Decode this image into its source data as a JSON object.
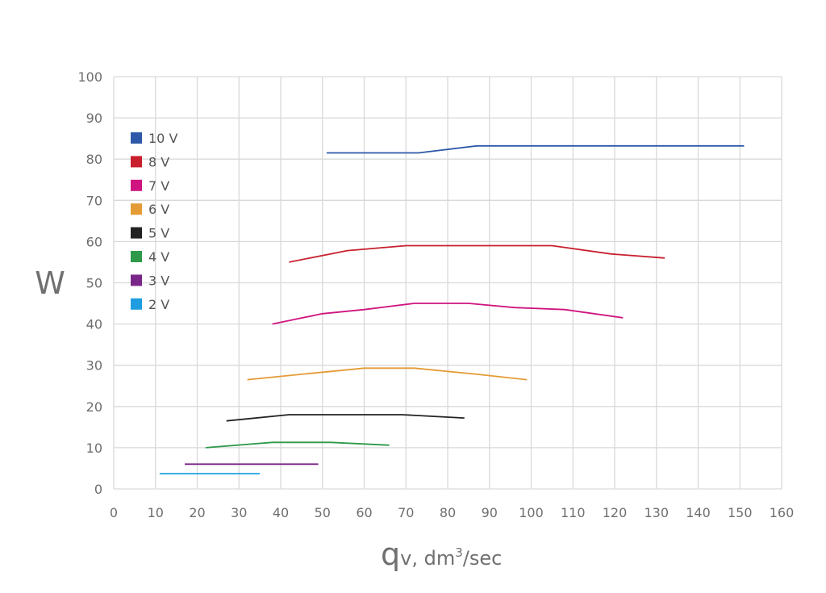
{
  "chart_data": {
    "type": "line",
    "title": "",
    "ylabel": "W",
    "xlabel": {
      "main": "q",
      "sub": "v, dm",
      "sup": "3",
      "tail": "/sec"
    },
    "xlim": [
      0,
      160
    ],
    "ylim": [
      0,
      100
    ],
    "xticks": [
      0,
      10,
      20,
      30,
      40,
      50,
      60,
      70,
      80,
      90,
      100,
      110,
      120,
      130,
      140,
      150,
      160
    ],
    "yticks": [
      0,
      10,
      20,
      30,
      40,
      50,
      60,
      70,
      80,
      90,
      100
    ],
    "grid": true,
    "legend_position": "top-left",
    "series": [
      {
        "name": "10 V",
        "color": "#2e59a8",
        "points": [
          [
            51,
            81.5
          ],
          [
            73,
            81.5
          ],
          [
            87,
            83.2
          ],
          [
            151,
            83.2
          ]
        ]
      },
      {
        "name": "8 V",
        "color": "#c8202e",
        "points": [
          [
            42,
            55
          ],
          [
            56,
            57.8
          ],
          [
            70,
            59
          ],
          [
            105,
            59
          ],
          [
            119,
            57
          ],
          [
            132,
            56
          ]
        ]
      },
      {
        "name": "7 V",
        "color": "#d0147f",
        "points": [
          [
            38,
            40
          ],
          [
            50,
            42.5
          ],
          [
            60,
            43.5
          ],
          [
            72,
            45
          ],
          [
            85,
            45
          ],
          [
            96,
            44
          ],
          [
            108,
            43.5
          ],
          [
            122,
            41.5
          ]
        ]
      },
      {
        "name": "6 V",
        "color": "#e59b35",
        "points": [
          [
            32,
            26.5
          ],
          [
            45,
            27.8
          ],
          [
            60,
            29.3
          ],
          [
            72,
            29.3
          ],
          [
            87,
            27.8
          ],
          [
            99,
            26.5
          ]
        ]
      },
      {
        "name": "5 V",
        "color": "#222222",
        "points": [
          [
            27,
            16.5
          ],
          [
            42,
            18
          ],
          [
            69,
            18
          ],
          [
            84,
            17.2
          ]
        ]
      },
      {
        "name": "4 V",
        "color": "#2e9a4a",
        "points": [
          [
            22,
            10
          ],
          [
            38,
            11.3
          ],
          [
            52,
            11.3
          ],
          [
            66,
            10.6
          ]
        ]
      },
      {
        "name": "3 V",
        "color": "#7a2588",
        "points": [
          [
            17,
            6
          ],
          [
            49,
            6
          ]
        ]
      },
      {
        "name": "2 V",
        "color": "#1e9ee0",
        "points": [
          [
            11,
            3.7
          ],
          [
            35,
            3.7
          ]
        ]
      }
    ]
  }
}
